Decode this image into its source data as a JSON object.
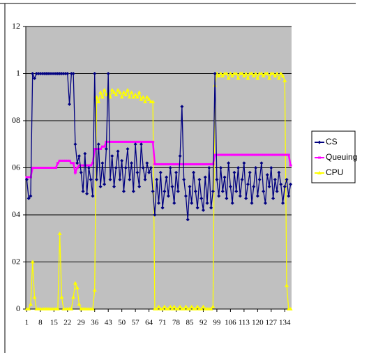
{
  "chart_data": {
    "type": "line",
    "x": [
      1,
      2,
      3,
      4,
      5,
      6,
      7,
      8,
      9,
      10,
      11,
      12,
      13,
      14,
      15,
      16,
      17,
      18,
      19,
      20,
      21,
      22,
      23,
      24,
      25,
      26,
      27,
      28,
      29,
      30,
      31,
      32,
      33,
      34,
      35,
      36,
      37,
      38,
      39,
      40,
      41,
      42,
      43,
      44,
      45,
      46,
      47,
      48,
      49,
      50,
      51,
      52,
      53,
      54,
      55,
      56,
      57,
      58,
      59,
      60,
      61,
      62,
      63,
      64,
      65,
      66,
      67,
      68,
      69,
      70,
      71,
      72,
      73,
      74,
      75,
      76,
      77,
      78,
      79,
      80,
      81,
      82,
      83,
      84,
      85,
      86,
      87,
      88,
      89,
      90,
      91,
      92,
      93,
      94,
      95,
      96,
      97,
      98,
      99,
      100,
      101,
      102,
      103,
      104,
      105,
      106,
      107,
      108,
      109,
      110,
      111,
      112,
      113,
      114,
      115,
      116,
      117,
      118,
      119,
      120,
      121,
      122,
      123,
      124,
      125,
      126,
      127,
      128,
      129,
      130,
      131,
      132,
      133,
      134,
      135,
      136,
      137
    ],
    "xlim": [
      0.5,
      137.5
    ],
    "xticks": [
      1,
      8,
      15,
      22,
      29,
      36,
      43,
      50,
      57,
      64,
      71,
      78,
      85,
      92,
      99,
      106,
      113,
      120,
      127,
      134
    ],
    "ylim": [
      0,
      1.2
    ],
    "yticks": [
      0,
      {
        "value": 0.2,
        "label": "02"
      },
      {
        "value": 0.4,
        "label": "04"
      },
      {
        "value": 0.6,
        "label": "06"
      },
      {
        "value": 0.8,
        "label": "08"
      },
      1,
      {
        "value": 1.2,
        "label": "12"
      }
    ],
    "grid": true,
    "legend": "right",
    "series": [
      {
        "name": "CS",
        "color": "#000080",
        "values": [
          0.55,
          0.47,
          0.48,
          1,
          0.98,
          1,
          1,
          1,
          1,
          1,
          1,
          1,
          1,
          1,
          1,
          1,
          1,
          1,
          1,
          1,
          1,
          1,
          0.87,
          1,
          1,
          0.7,
          0.62,
          0.65,
          0.58,
          0.5,
          0.66,
          0.49,
          0.6,
          0.55,
          0.48,
          1,
          0.55,
          0.7,
          0.52,
          0.62,
          0.53,
          0.68,
          1,
          0.55,
          0.65,
          0.52,
          0.6,
          0.67,
          0.55,
          0.63,
          0.5,
          0.6,
          0.68,
          0.55,
          0.62,
          0.5,
          0.7,
          0.58,
          0.52,
          0.7,
          0.6,
          0.55,
          0.62,
          0.58,
          0.6,
          0.5,
          0.4,
          0.55,
          0.45,
          0.58,
          0.43,
          0.5,
          0.56,
          0.48,
          0.6,
          0.52,
          0.45,
          0.58,
          0.5,
          0.65,
          0.86,
          0.55,
          0.48,
          0.38,
          0.52,
          0.45,
          0.58,
          0.5,
          0.43,
          0.55,
          0.47,
          0.42,
          0.56,
          0.45,
          0.6,
          0.43,
          0.5,
          1,
          0.55,
          0.48,
          0.6,
          0.5,
          0.56,
          0.47,
          0.62,
          0.52,
          0.45,
          0.58,
          0.5,
          0.6,
          0.48,
          0.55,
          0.62,
          0.47,
          0.53,
          0.58,
          0.45,
          0.52,
          0.6,
          0.48,
          0.55,
          0.62,
          0.5,
          0.45,
          0.57,
          0.52,
          0.6,
          0.47,
          0.55,
          0.5,
          0.58,
          0.53,
          0.45,
          0.52,
          0.55,
          0.48,
          0.53
        ]
      },
      {
        "name": "Queuing",
        "color": "#ff00ff",
        "values": [
          0.56,
          0.56,
          0.56,
          0.6,
          0.6,
          0.6,
          0.6,
          0.6,
          0.6,
          0.6,
          0.6,
          0.6,
          0.6,
          0.6,
          0.6,
          0.6,
          0.62,
          0.63,
          0.63,
          0.63,
          0.63,
          0.63,
          0.63,
          0.62,
          0.62,
          0.58,
          0.6,
          0.61,
          0.61,
          0.61,
          0.61,
          0.61,
          0.61,
          0.61,
          0.62,
          0.68,
          0.68,
          0.68,
          0.68,
          0.69,
          0.69,
          0.71,
          0.71,
          0.71,
          0.71,
          0.71,
          0.71,
          0.71,
          0.71,
          0.71,
          0.71,
          0.71,
          0.71,
          0.71,
          0.71,
          0.71,
          0.71,
          0.71,
          0.71,
          0.71,
          0.71,
          0.71,
          0.71,
          0.71,
          0.71,
          0.71,
          0.615,
          0.615,
          0.615,
          0.615,
          0.615,
          0.615,
          0.615,
          0.615,
          0.615,
          0.615,
          0.615,
          0.615,
          0.615,
          0.615,
          0.615,
          0.615,
          0.615,
          0.615,
          0.615,
          0.615,
          0.615,
          0.615,
          0.615,
          0.615,
          0.615,
          0.615,
          0.615,
          0.615,
          0.615,
          0.615,
          0.615,
          0.655,
          0.655,
          0.655,
          0.655,
          0.655,
          0.655,
          0.655,
          0.655,
          0.655,
          0.655,
          0.655,
          0.655,
          0.655,
          0.655,
          0.655,
          0.655,
          0.655,
          0.655,
          0.655,
          0.655,
          0.655,
          0.655,
          0.655,
          0.655,
          0.655,
          0.655,
          0.655,
          0.655,
          0.655,
          0.655,
          0.655,
          0.655,
          0.655,
          0.655,
          0.655,
          0.655,
          0.655,
          0.655,
          0.655,
          0.61
        ]
      },
      {
        "name": "CPU",
        "color": "#ffff00",
        "values": [
          0,
          0,
          0.02,
          0.2,
          0.05,
          0,
          0,
          0,
          0,
          0,
          0,
          0,
          0,
          0,
          0,
          0,
          0,
          0.32,
          0.05,
          0,
          0,
          0,
          0,
          0,
          0.05,
          0.11,
          0.09,
          0.02,
          0,
          0,
          0,
          0,
          0,
          0,
          0,
          0.08,
          0.9,
          0.88,
          0.92,
          0.9,
          0.93,
          0.91,
          0.92,
          0.9,
          0.93,
          0.92,
          0.91,
          0.93,
          0.92,
          0.9,
          0.92,
          0.91,
          0.93,
          0.9,
          0.92,
          0.9,
          0.91,
          0.9,
          0.92,
          0.89,
          0.9,
          0.88,
          0.9,
          0.89,
          0.88,
          0.88,
          0,
          0,
          0.01,
          0,
          0,
          0.01,
          0,
          0,
          0.01,
          0,
          0.01,
          0,
          0,
          0.01,
          0,
          0,
          0.01,
          0,
          0,
          0.01,
          0,
          0,
          0.01,
          0,
          0,
          0.01,
          0,
          0,
          0,
          0,
          0.01,
          0.95,
          1,
          0.99,
          1,
          0.99,
          1,
          1,
          0.98,
          1,
          0.99,
          1,
          1,
          0.98,
          1,
          1,
          0.99,
          1,
          0.98,
          1,
          1,
          0.99,
          1,
          0.98,
          1,
          1,
          0.99,
          1,
          1,
          0.98,
          1,
          1,
          0.99,
          1,
          0.98,
          1,
          0.99,
          0.97,
          0.1,
          0,
          0
        ]
      }
    ]
  }
}
